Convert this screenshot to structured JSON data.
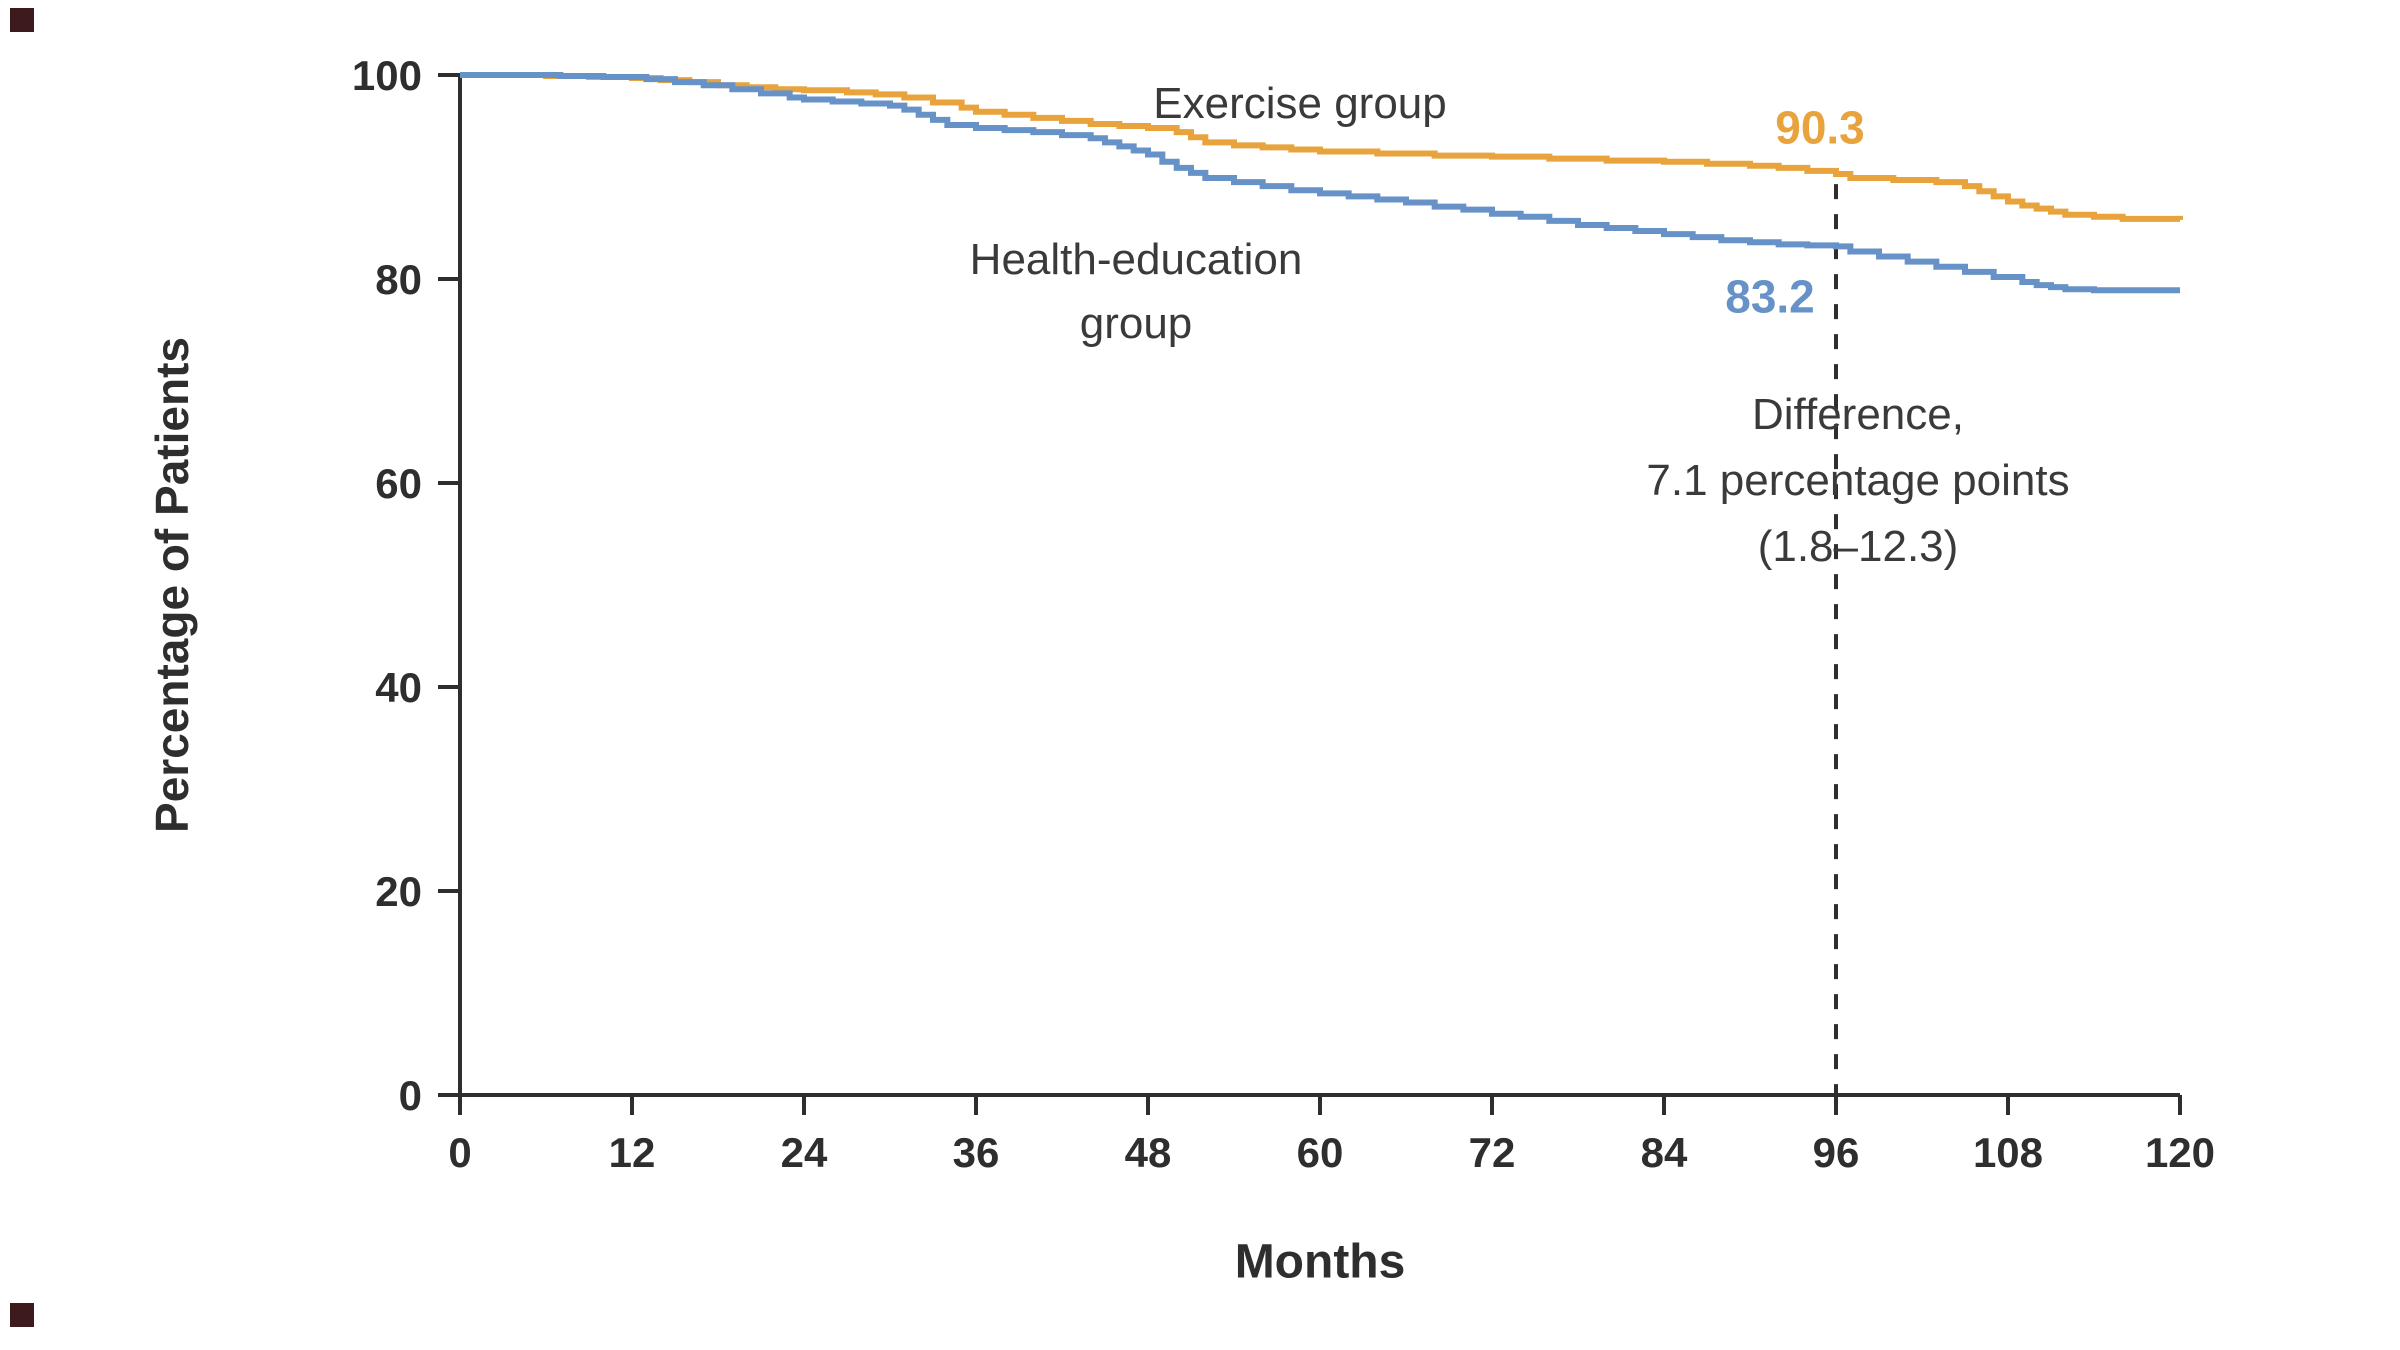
{
  "figure": {
    "background": "#ffffff",
    "axis_color": "#2e2e2e",
    "corner_marker_color": "#3d1a1e"
  },
  "chart_data": {
    "type": "line",
    "style": "step-after",
    "title": "",
    "xlabel": "Months",
    "ylabel": "Percentage of Patients",
    "xlim": [
      0,
      120
    ],
    "ylim": [
      0,
      100
    ],
    "xticks": [
      0,
      12,
      24,
      36,
      48,
      60,
      72,
      84,
      96,
      108,
      120
    ],
    "yticks": [
      0,
      20,
      40,
      60,
      80,
      100
    ],
    "grid": false,
    "legend_position": "inline-labels",
    "series": [
      {
        "name": "Exercise group",
        "color": "#E8A33D",
        "value_at_96_months": 90.3,
        "points": [
          [
            0,
            100
          ],
          [
            6,
            99.9
          ],
          [
            9,
            99.8
          ],
          [
            12,
            99.7
          ],
          [
            14,
            99.5
          ],
          [
            16,
            99.3
          ],
          [
            18,
            99.0
          ],
          [
            20,
            98.8
          ],
          [
            22,
            98.6
          ],
          [
            24,
            98.5
          ],
          [
            27,
            98.3
          ],
          [
            29,
            98.1
          ],
          [
            31,
            97.8
          ],
          [
            33,
            97.3
          ],
          [
            35,
            96.8
          ],
          [
            36,
            96.4
          ],
          [
            38,
            96.1
          ],
          [
            40,
            95.8
          ],
          [
            42,
            95.5
          ],
          [
            44,
            95.2
          ],
          [
            46,
            95.0
          ],
          [
            48,
            94.8
          ],
          [
            50,
            94.4
          ],
          [
            51,
            93.9
          ],
          [
            52,
            93.4
          ],
          [
            54,
            93.1
          ],
          [
            56,
            92.9
          ],
          [
            58,
            92.7
          ],
          [
            60,
            92.5
          ],
          [
            64,
            92.3
          ],
          [
            68,
            92.1
          ],
          [
            72,
            92.0
          ],
          [
            76,
            91.8
          ],
          [
            80,
            91.6
          ],
          [
            84,
            91.5
          ],
          [
            87,
            91.3
          ],
          [
            90,
            91.1
          ],
          [
            92,
            90.9
          ],
          [
            94,
            90.6
          ],
          [
            96,
            90.3
          ],
          [
            97,
            89.9
          ],
          [
            100,
            89.7
          ],
          [
            103,
            89.5
          ],
          [
            105,
            89.1
          ],
          [
            106,
            88.6
          ],
          [
            107,
            88.1
          ],
          [
            108,
            87.6
          ],
          [
            109,
            87.2
          ],
          [
            110,
            86.9
          ],
          [
            111,
            86.6
          ],
          [
            112,
            86.3
          ],
          [
            114,
            86.1
          ],
          [
            116,
            85.9
          ],
          [
            120,
            85.8
          ]
        ]
      },
      {
        "name": "Health-education group",
        "color": "#6792C8",
        "value_at_96_months": 83.2,
        "points": [
          [
            0,
            100
          ],
          [
            7,
            99.9
          ],
          [
            10,
            99.8
          ],
          [
            13,
            99.6
          ],
          [
            15,
            99.3
          ],
          [
            17,
            99.0
          ],
          [
            19,
            98.6
          ],
          [
            21,
            98.2
          ],
          [
            23,
            97.8
          ],
          [
            24,
            97.6
          ],
          [
            26,
            97.4
          ],
          [
            28,
            97.2
          ],
          [
            30,
            97.0
          ],
          [
            31,
            96.6
          ],
          [
            32,
            96.1
          ],
          [
            33,
            95.6
          ],
          [
            34,
            95.1
          ],
          [
            36,
            94.8
          ],
          [
            38,
            94.6
          ],
          [
            40,
            94.4
          ],
          [
            42,
            94.1
          ],
          [
            44,
            93.8
          ],
          [
            45,
            93.4
          ],
          [
            46,
            93.0
          ],
          [
            47,
            92.6
          ],
          [
            48,
            92.2
          ],
          [
            49,
            91.5
          ],
          [
            50,
            90.9
          ],
          [
            51,
            90.4
          ],
          [
            52,
            89.9
          ],
          [
            54,
            89.5
          ],
          [
            56,
            89.1
          ],
          [
            58,
            88.7
          ],
          [
            60,
            88.4
          ],
          [
            62,
            88.1
          ],
          [
            64,
            87.8
          ],
          [
            66,
            87.5
          ],
          [
            68,
            87.1
          ],
          [
            70,
            86.8
          ],
          [
            72,
            86.4
          ],
          [
            74,
            86.1
          ],
          [
            76,
            85.7
          ],
          [
            78,
            85.3
          ],
          [
            80,
            85.0
          ],
          [
            82,
            84.7
          ],
          [
            84,
            84.4
          ],
          [
            86,
            84.1
          ],
          [
            88,
            83.8
          ],
          [
            90,
            83.6
          ],
          [
            92,
            83.4
          ],
          [
            94,
            83.3
          ],
          [
            96,
            83.2
          ],
          [
            97,
            82.7
          ],
          [
            99,
            82.2
          ],
          [
            101,
            81.7
          ],
          [
            103,
            81.2
          ],
          [
            105,
            80.7
          ],
          [
            107,
            80.2
          ],
          [
            109,
            79.7
          ],
          [
            110,
            79.4
          ],
          [
            111,
            79.2
          ],
          [
            112,
            79.0
          ],
          [
            114,
            78.9
          ],
          [
            120,
            78.9
          ]
        ]
      }
    ],
    "dashed_line": {
      "x": 96,
      "y_top": 89.3,
      "y_bottom": 0
    },
    "annotations": {
      "exercise_label": "Exercise group",
      "health_label_line1": "Health-education",
      "health_label_line2": "group",
      "exercise_value": "90.3",
      "health_value": "83.2",
      "difference_line1": "Difference,",
      "difference_line2": "7.1 percentage points",
      "difference_line3": "(1.8–12.3)"
    }
  }
}
